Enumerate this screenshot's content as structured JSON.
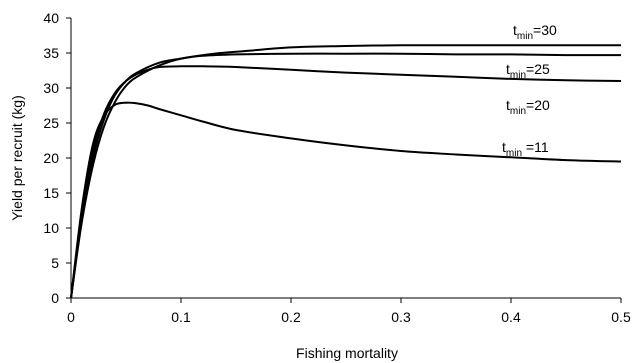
{
  "chart_data": {
    "type": "line",
    "xlabel": "Fishing mortality",
    "ylabel": "Yield per recruit (kg)",
    "xlim": [
      0,
      0.5
    ],
    "ylim": [
      0,
      40
    ],
    "xticks": [
      "0",
      "0.1",
      "0.2",
      "0.3",
      "0.4",
      "0.5"
    ],
    "yticks": [
      "0",
      "5",
      "10",
      "15",
      "20",
      "25",
      "30",
      "35",
      "40"
    ],
    "grid": false,
    "series": [
      {
        "label_main": "t",
        "label_sub": "min",
        "label_rest": "=30",
        "x": [
          0,
          0.01,
          0.02,
          0.03,
          0.04,
          0.05,
          0.06,
          0.08,
          0.1,
          0.13,
          0.16,
          0.2,
          0.25,
          0.3,
          0.35,
          0.4,
          0.45,
          0.5
        ],
        "y": [
          0,
          11,
          19,
          24.5,
          28,
          30.3,
          31.6,
          33.2,
          34.2,
          34.9,
          35.3,
          35.8,
          36,
          36.1,
          36.1,
          36.1,
          36.1,
          36.1
        ]
      },
      {
        "label_main": "t",
        "label_sub": "min",
        "label_rest": "=25",
        "x": [
          0,
          0.01,
          0.02,
          0.03,
          0.04,
          0.05,
          0.06,
          0.08,
          0.1,
          0.12,
          0.15,
          0.2,
          0.25,
          0.3,
          0.35,
          0.4,
          0.45,
          0.5
        ],
        "y": [
          0,
          11.5,
          20,
          25.5,
          29,
          31,
          32.2,
          33.6,
          34.2,
          34.6,
          34.8,
          34.9,
          34.9,
          34.9,
          34.8,
          34.8,
          34.7,
          34.7
        ]
      },
      {
        "label_main": "t",
        "label_sub": "min",
        "label_rest": "=20",
        "x": [
          0,
          0.01,
          0.02,
          0.03,
          0.04,
          0.05,
          0.06,
          0.07,
          0.08,
          0.1,
          0.12,
          0.15,
          0.2,
          0.25,
          0.3,
          0.35,
          0.4,
          0.45,
          0.5
        ],
        "y": [
          0,
          12,
          21,
          26.3,
          29.3,
          31,
          32,
          32.6,
          33,
          33.1,
          33.1,
          33,
          32.6,
          32.2,
          31.9,
          31.6,
          31.3,
          31.1,
          31
        ]
      },
      {
        "label_main": "t",
        "label_sub": "min",
        "label_rest": " =11",
        "x": [
          0,
          0.01,
          0.02,
          0.03,
          0.04,
          0.05,
          0.06,
          0.07,
          0.08,
          0.1,
          0.12,
          0.15,
          0.2,
          0.25,
          0.3,
          0.35,
          0.4,
          0.45,
          0.5
        ],
        "y": [
          0,
          13,
          22,
          26,
          27.6,
          27.9,
          27.8,
          27.5,
          27,
          26.1,
          25.2,
          24,
          22.8,
          21.8,
          21,
          20.5,
          20.1,
          19.7,
          19.5
        ]
      }
    ]
  }
}
